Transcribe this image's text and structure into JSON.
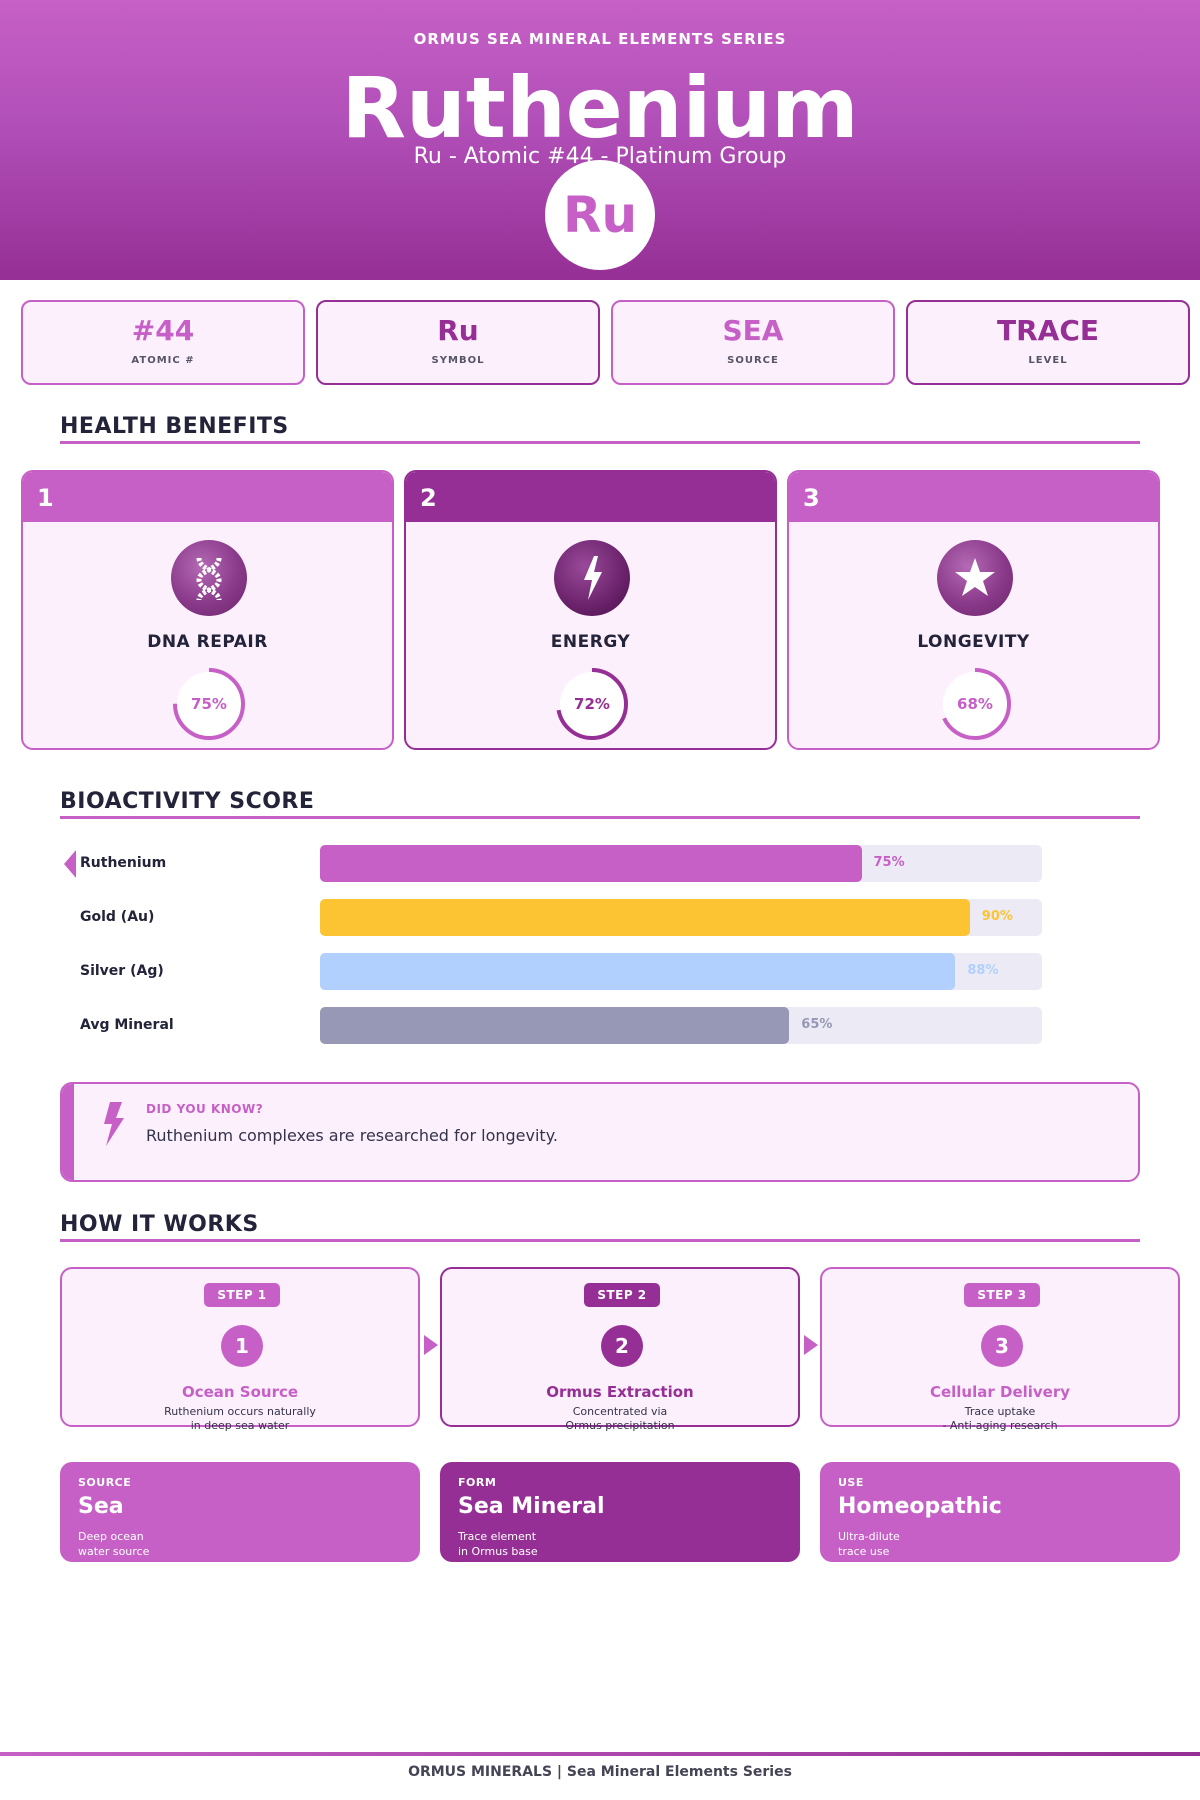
{
  "header": {
    "series": "ORMUS SEA MINERAL ELEMENTS SERIES",
    "title": "Ruthenium",
    "subtitle": "Ru  -  Atomic #44  -  Platinum Group",
    "badge": "Ru"
  },
  "stats": [
    {
      "value": "#44",
      "label": "ATOMIC #"
    },
    {
      "value": "Ru",
      "label": "SYMBOL"
    },
    {
      "value": "SEA",
      "label": "SOURCE"
    },
    {
      "value": "TRACE",
      "label": "LEVEL"
    }
  ],
  "sections": {
    "benefits": "HEALTH BENEFITS",
    "bioactivity": "BIOACTIVITY SCORE",
    "how": "HOW IT WORKS"
  },
  "benefits": [
    {
      "num": "1",
      "name": "DNA REPAIR",
      "pct": "75%",
      "value": 75,
      "icon": "dna-icon"
    },
    {
      "num": "2",
      "name": "ENERGY",
      "pct": "72%",
      "value": 72,
      "icon": "lightning-icon"
    },
    {
      "num": "3",
      "name": "LONGEVITY",
      "pct": "68%",
      "value": 68,
      "icon": "star-icon"
    }
  ],
  "bioactivity": [
    {
      "label": "Ruthenium",
      "pct": "75%",
      "value": 75,
      "color": "#c660c6"
    },
    {
      "label": "Gold (Au)",
      "pct": "90%",
      "value": 90,
      "color": "#fcc433"
    },
    {
      "label": "Silver (Ag)",
      "pct": "88%",
      "value": 88,
      "color": "#b1d0fd"
    },
    {
      "label": "Avg Mineral",
      "pct": "65%",
      "value": 65,
      "color": "#9797b6"
    }
  ],
  "did_you_know": {
    "kicker": "DID YOU KNOW?",
    "text": "Ruthenium complexes are researched for longevity."
  },
  "steps": [
    {
      "pill": "STEP 1",
      "num": "1",
      "title": "Ocean Source",
      "line1": "Ruthenium occurs naturally",
      "line2": "in deep sea water"
    },
    {
      "pill": "STEP 2",
      "num": "2",
      "title": "Ormus Extraction",
      "line1": "Concentrated via",
      "line2": "Ormus precipitation"
    },
    {
      "pill": "STEP 3",
      "num": "3",
      "title": "Cellular Delivery",
      "line1": "Trace uptake",
      "line2": "- Anti-aging research"
    }
  ],
  "info": [
    {
      "kicker": "SOURCE",
      "value": "Sea",
      "line1": "Deep ocean",
      "line2": "water source"
    },
    {
      "kicker": "FORM",
      "value": "Sea Mineral",
      "line1": "Trace element",
      "line2": "in Ormus base"
    },
    {
      "kicker": "USE",
      "value": "Homeopathic",
      "line1": "Ultra-dilute",
      "line2": "trace use"
    }
  ],
  "footer": "ORMUS MINERALS  |  Sea Mineral Elements Series",
  "colors": {
    "primary": "#c660c6",
    "dark": "#952f95",
    "panel": "#fdf0fd"
  }
}
